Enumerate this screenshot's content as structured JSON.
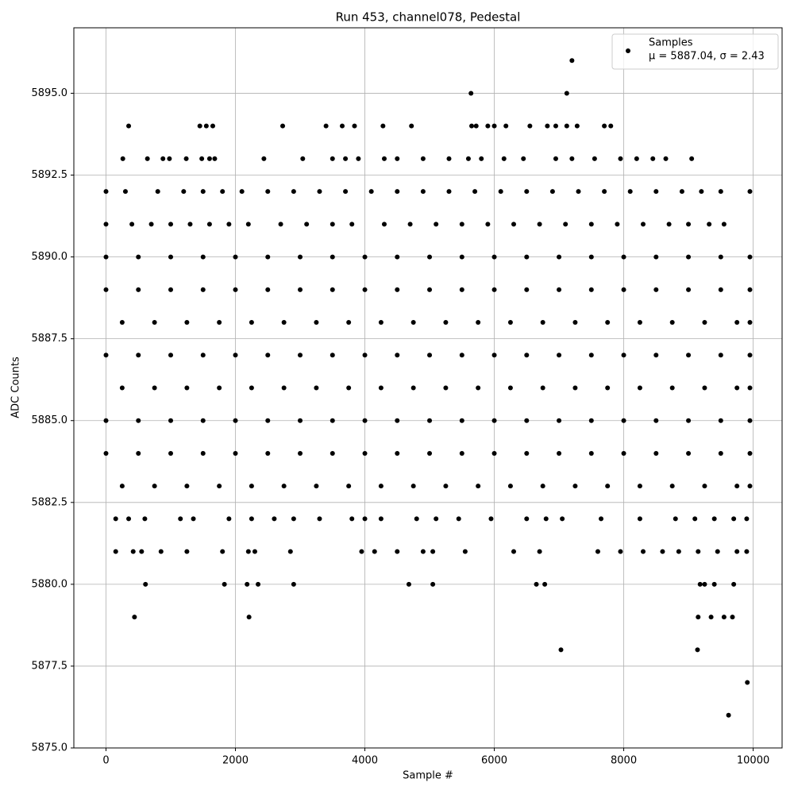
{
  "chart_data": {
    "type": "scatter",
    "title": "Run 453, channel078, Pedestal",
    "x_label": "Sample #",
    "y_label": "ADC Counts",
    "xlim": [
      -497,
      10447
    ],
    "ylim": [
      5875,
      5897
    ],
    "xticks": [
      0,
      2000,
      4000,
      6000,
      8000,
      10000
    ],
    "yticks": [
      {
        "value": 5875,
        "label": "5875.0"
      },
      {
        "value": 5877.5,
        "label": "5877.5"
      },
      {
        "value": 5880,
        "label": "5880.0"
      },
      {
        "value": 5882.5,
        "label": "5882.5"
      },
      {
        "value": 5885,
        "label": "5885.0"
      },
      {
        "value": 5887.5,
        "label": "5887.5"
      },
      {
        "value": 5890,
        "label": "5890.0"
      },
      {
        "value": 5892.5,
        "label": "5892.5"
      },
      {
        "value": 5895,
        "label": "5895.0"
      }
    ],
    "grid": true,
    "legend_position": "upper right",
    "stats_label": "μ = 5887.04, σ = 2.43",
    "x": [
      7200,
      5640,
      7120,
      350,
      1450,
      1550,
      1650,
      2730,
      3400,
      3650,
      3840,
      4280,
      4720,
      5650,
      5720,
      5900,
      6000,
      6180,
      6550,
      6820,
      6950,
      7120,
      7280,
      7700,
      7800,
      260,
      640,
      880,
      980,
      1240,
      1480,
      1600,
      1680,
      2440,
      3040,
      3500,
      3700,
      3900,
      4300,
      4500,
      4900,
      5300,
      5600,
      5800,
      6150,
      6450,
      6950,
      7200,
      7550,
      7950,
      8200,
      8450,
      8650,
      9050,
      0,
      300,
      800,
      1200,
      1500,
      1800,
      2100,
      2500,
      2900,
      3300,
      3700,
      4100,
      4500,
      4900,
      5300,
      5700,
      6100,
      6500,
      6900,
      7300,
      7700,
      8100,
      8500,
      8900,
      9200,
      9500,
      9950,
      0,
      400,
      700,
      1000,
      1300,
      1600,
      1900,
      2200,
      2700,
      3100,
      3500,
      3800,
      4300,
      4700,
      5100,
      5500,
      5900,
      6300,
      6700,
      7100,
      7500,
      7900,
      8300,
      8700,
      9000,
      9320,
      9550,
      0,
      500,
      1000,
      1500,
      2000,
      2500,
      3000,
      3500,
      4000,
      4500,
      5000,
      5500,
      6000,
      6500,
      7000,
      7500,
      8000,
      8500,
      9000,
      9500,
      9950,
      0,
      500,
      1000,
      1500,
      2000,
      2500,
      3000,
      3500,
      4000,
      4500,
      5000,
      5500,
      6000,
      6500,
      7000,
      7500,
      8000,
      8500,
      9000,
      9500,
      9950,
      250,
      750,
      1250,
      1750,
      2250,
      2750,
      3250,
      3750,
      4250,
      4750,
      5250,
      5750,
      6250,
      6750,
      7250,
      7750,
      8250,
      8750,
      9250,
      9750,
      9950,
      0,
      500,
      1000,
      1500,
      2000,
      2500,
      3000,
      3500,
      4000,
      4500,
      5000,
      5500,
      6000,
      6500,
      7000,
      7500,
      8000,
      8500,
      9000,
      9500,
      9950,
      250,
      750,
      1250,
      1750,
      2250,
      2750,
      3250,
      3750,
      4250,
      4750,
      5250,
      5750,
      6250,
      6750,
      7250,
      7750,
      8250,
      8750,
      9250,
      9750,
      9950,
      0,
      500,
      1000,
      1500,
      2000,
      2500,
      3000,
      3500,
      4000,
      4500,
      5000,
      5500,
      6000,
      6500,
      7000,
      7500,
      8000,
      8500,
      9000,
      9500,
      9950,
      0,
      500,
      1000,
      1500,
      2000,
      2500,
      3000,
      3500,
      4000,
      4500,
      5000,
      5500,
      6000,
      6500,
      7000,
      7500,
      8000,
      8500,
      9000,
      9500,
      9950,
      250,
      750,
      1250,
      1750,
      2250,
      2750,
      3250,
      3750,
      4250,
      4750,
      5250,
      5750,
      6250,
      6750,
      7250,
      7750,
      8250,
      8750,
      9250,
      9750,
      9950,
      150,
      350,
      600,
      1150,
      1350,
      1900,
      2250,
      2600,
      2900,
      3300,
      3800,
      4000,
      4250,
      4800,
      5100,
      5450,
      5950,
      6500,
      6800,
      7050,
      7650,
      8250,
      8800,
      9100,
      9400,
      9700,
      9900,
      150,
      420,
      550,
      850,
      1250,
      1800,
      2200,
      2300,
      2850,
      3950,
      4150,
      4500,
      4900,
      5050,
      5550,
      6300,
      6700,
      7600,
      7950,
      8300,
      8600,
      8850,
      9150,
      9450,
      9750,
      9900,
      610,
      1830,
      2180,
      2350,
      2900,
      4680,
      5050,
      6650,
      6780,
      9180,
      9250,
      9400,
      9700,
      440,
      2210,
      9150,
      9350,
      9550,
      9680,
      7030,
      9140,
      9910,
      9620
    ],
    "series": [
      {
        "name": "Samples",
        "color": "#000000",
        "values": [
          5896,
          5895,
          5895,
          5894,
          5894,
          5894,
          5894,
          5894,
          5894,
          5894,
          5894,
          5894,
          5894,
          5894,
          5894,
          5894,
          5894,
          5894,
          5894,
          5894,
          5894,
          5894,
          5894,
          5894,
          5894,
          5893,
          5893,
          5893,
          5893,
          5893,
          5893,
          5893,
          5893,
          5893,
          5893,
          5893,
          5893,
          5893,
          5893,
          5893,
          5893,
          5893,
          5893,
          5893,
          5893,
          5893,
          5893,
          5893,
          5893,
          5893,
          5893,
          5893,
          5893,
          5893,
          5892,
          5892,
          5892,
          5892,
          5892,
          5892,
          5892,
          5892,
          5892,
          5892,
          5892,
          5892,
          5892,
          5892,
          5892,
          5892,
          5892,
          5892,
          5892,
          5892,
          5892,
          5892,
          5892,
          5892,
          5892,
          5892,
          5892,
          5891,
          5891,
          5891,
          5891,
          5891,
          5891,
          5891,
          5891,
          5891,
          5891,
          5891,
          5891,
          5891,
          5891,
          5891,
          5891,
          5891,
          5891,
          5891,
          5891,
          5891,
          5891,
          5891,
          5891,
          5891,
          5891,
          5891,
          5890,
          5890,
          5890,
          5890,
          5890,
          5890,
          5890,
          5890,
          5890,
          5890,
          5890,
          5890,
          5890,
          5890,
          5890,
          5890,
          5890,
          5890,
          5890,
          5890,
          5890,
          5889,
          5889,
          5889,
          5889,
          5889,
          5889,
          5889,
          5889,
          5889,
          5889,
          5889,
          5889,
          5889,
          5889,
          5889,
          5889,
          5889,
          5889,
          5889,
          5889,
          5889,
          5888,
          5888,
          5888,
          5888,
          5888,
          5888,
          5888,
          5888,
          5888,
          5888,
          5888,
          5888,
          5888,
          5888,
          5888,
          5888,
          5888,
          5888,
          5888,
          5888,
          5888,
          5887,
          5887,
          5887,
          5887,
          5887,
          5887,
          5887,
          5887,
          5887,
          5887,
          5887,
          5887,
          5887,
          5887,
          5887,
          5887,
          5887,
          5887,
          5887,
          5887,
          5887,
          5886,
          5886,
          5886,
          5886,
          5886,
          5886,
          5886,
          5886,
          5886,
          5886,
          5886,
          5886,
          5886,
          5886,
          5886,
          5886,
          5886,
          5886,
          5886,
          5886,
          5886,
          5885,
          5885,
          5885,
          5885,
          5885,
          5885,
          5885,
          5885,
          5885,
          5885,
          5885,
          5885,
          5885,
          5885,
          5885,
          5885,
          5885,
          5885,
          5885,
          5885,
          5885,
          5884,
          5884,
          5884,
          5884,
          5884,
          5884,
          5884,
          5884,
          5884,
          5884,
          5884,
          5884,
          5884,
          5884,
          5884,
          5884,
          5884,
          5884,
          5884,
          5884,
          5884,
          5883,
          5883,
          5883,
          5883,
          5883,
          5883,
          5883,
          5883,
          5883,
          5883,
          5883,
          5883,
          5883,
          5883,
          5883,
          5883,
          5883,
          5883,
          5883,
          5883,
          5883,
          5882,
          5882,
          5882,
          5882,
          5882,
          5882,
          5882,
          5882,
          5882,
          5882,
          5882,
          5882,
          5882,
          5882,
          5882,
          5882,
          5882,
          5882,
          5882,
          5882,
          5882,
          5882,
          5882,
          5882,
          5882,
          5882,
          5882,
          5881,
          5881,
          5881,
          5881,
          5881,
          5881,
          5881,
          5881,
          5881,
          5881,
          5881,
          5881,
          5881,
          5881,
          5881,
          5881,
          5881,
          5881,
          5881,
          5881,
          5881,
          5881,
          5881,
          5881,
          5881,
          5881,
          5880,
          5880,
          5880,
          5880,
          5880,
          5880,
          5880,
          5880,
          5880,
          5880,
          5880,
          5880,
          5880,
          5879,
          5879,
          5879,
          5879,
          5879,
          5879,
          5878,
          5878,
          5877,
          5876
        ]
      }
    ]
  }
}
